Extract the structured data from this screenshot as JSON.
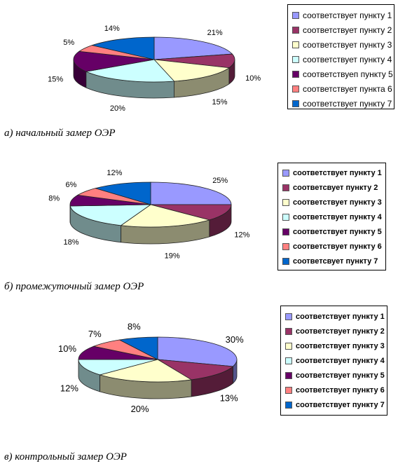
{
  "colors": [
    "#9999ff",
    "#993366",
    "#ffffcc",
    "#ccffff",
    "#660066",
    "#ff8080",
    "#0066cc"
  ],
  "chart_data": [
    {
      "type": "pie",
      "categories": [
        "соответствует пункту 1",
        "соответствует пункту 2",
        "соответствует пункту 3",
        "соответствует пункту 4",
        "соответствуеп пункту 5",
        "соответствует пункта 6",
        "соответствует пункту 7"
      ],
      "values": [
        21,
        10,
        15,
        20,
        15,
        5,
        14
      ],
      "labels": [
        "21%",
        "10%",
        "15%",
        "20%",
        "15%",
        "5%",
        "14%"
      ],
      "caption": "а) начальный замер ОЭР",
      "legend": "right",
      "three_d": true
    },
    {
      "type": "pie",
      "categories": [
        "соответствует пункту 1",
        "соответсвует пункту 2",
        "соответствует пункту 3",
        "соответствует пункту 4",
        "соответствует пункту 5",
        "соответствует пункту 6",
        "соответсвует пункту 7"
      ],
      "values": [
        25,
        12,
        19,
        18,
        8,
        6,
        12
      ],
      "labels": [
        "25%",
        "12%",
        "19%",
        "18%",
        "8%",
        "6%",
        "12%"
      ],
      "caption": "б) промежуточный замер ОЭР",
      "legend": "right",
      "three_d": true
    },
    {
      "type": "pie",
      "categories": [
        "соответствует пункту 1",
        "соответствует пункту 2",
        "соответствует пункту 3",
        "соответствует пункту 4",
        "соответствует пункту 5",
        "соответствует пункту 6",
        "соответствует пункту 7"
      ],
      "values": [
        30,
        13,
        20,
        12,
        10,
        7,
        8
      ],
      "labels": [
        "30%",
        "13%",
        "20%",
        "12%",
        "10%",
        "7%",
        "8%"
      ],
      "caption": "в) контрольный замер ОЭР",
      "legend": "right",
      "three_d": true
    }
  ]
}
